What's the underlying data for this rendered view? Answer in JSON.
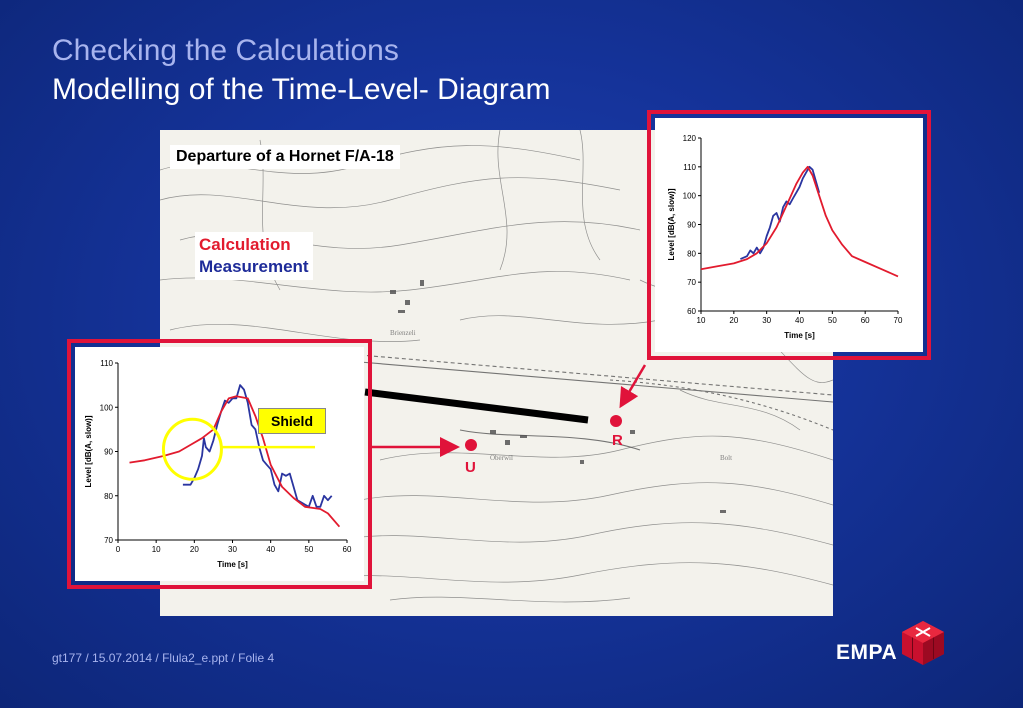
{
  "slide": {
    "title_line1": "Checking the Calculations",
    "title_line2": "Modelling of the Time-Level- Diagram",
    "footer": "gt177 / 15.07.2014 / Flula2_e.ppt / Folie 4",
    "logo": "EMPA"
  },
  "map": {
    "label": "Departure of a Hornet F/A-18",
    "legend": {
      "calculation": "Calculation",
      "measurement": "Measurement"
    },
    "shield_label": "Shield",
    "marker_u": "U",
    "marker_r": "R"
  },
  "colors": {
    "calculation": "#e21b2e",
    "measurement": "#2a35a0",
    "frame": "#e0133a",
    "background": "#15339a",
    "shield": "#ffff00"
  },
  "chart_data": [
    {
      "id": "point-R",
      "type": "line",
      "xlabel": "Time [s]",
      "ylabel": "Level [dB(A, slow)]",
      "xlim": [
        10,
        70
      ],
      "ylim": [
        60,
        120
      ],
      "xticks": [
        10,
        20,
        30,
        40,
        50,
        60,
        70
      ],
      "yticks": [
        60,
        70,
        80,
        90,
        100,
        110,
        120
      ],
      "grid": false,
      "series": [
        {
          "key": "calculation",
          "x": [
            10,
            15,
            20,
            24,
            27,
            30,
            33,
            35,
            37,
            39,
            41,
            42.5,
            44,
            46,
            48,
            50,
            53,
            56,
            60,
            65,
            70
          ],
          "y": [
            74.5,
            75.5,
            76.5,
            78,
            80,
            83.5,
            89,
            94,
            99,
            104,
            108,
            110,
            107,
            100,
            93,
            88,
            83,
            79,
            77,
            74.5,
            72
          ]
        },
        {
          "key": "measurement",
          "x": [
            22,
            24,
            25,
            26,
            27,
            28,
            29,
            30,
            31,
            32,
            33,
            34,
            35,
            36,
            37,
            38,
            39,
            40,
            41,
            42,
            43,
            44,
            45,
            46
          ],
          "y": [
            78,
            79,
            81,
            80,
            82,
            80,
            82,
            86,
            89,
            93,
            94,
            91,
            96,
            98,
            97,
            99,
            101,
            103,
            106,
            108,
            110,
            109,
            105,
            101
          ]
        }
      ]
    },
    {
      "id": "point-U",
      "type": "line",
      "xlabel": "Time [s]",
      "ylabel": "Level [dB(A, slow)]",
      "xlim": [
        0,
        60
      ],
      "ylim": [
        70,
        110
      ],
      "xticks": [
        0,
        10,
        20,
        30,
        40,
        50,
        60
      ],
      "yticks": [
        70,
        80,
        90,
        100,
        110
      ],
      "grid": false,
      "series": [
        {
          "key": "calculation",
          "x": [
            3,
            7,
            12,
            16,
            19,
            22,
            25,
            27,
            29,
            31,
            34,
            36,
            38,
            40,
            43,
            46,
            49,
            53,
            55,
            58
          ],
          "y": [
            87.5,
            88,
            89,
            90,
            91.5,
            93,
            95,
            99,
            102,
            102.5,
            102,
            98,
            93,
            87,
            82,
            79.5,
            77.5,
            77,
            76,
            73
          ]
        },
        {
          "key": "measurement",
          "x": [
            17,
            19,
            20,
            21,
            22,
            22.5,
            23,
            24,
            25,
            26,
            27,
            28,
            29,
            30,
            31,
            32,
            33,
            34,
            35,
            36,
            37,
            38,
            39,
            40,
            41,
            42,
            43,
            44,
            45,
            46,
            47,
            48,
            49,
            50,
            51,
            52,
            53,
            54,
            55,
            56
          ],
          "y": [
            82.5,
            82.5,
            84,
            86,
            89,
            93,
            91,
            90,
            92.5,
            96,
            99,
            101.5,
            101,
            102,
            102,
            105,
            104,
            101,
            96,
            95,
            91,
            88,
            87,
            86,
            82.5,
            81,
            85,
            84.5,
            85,
            82,
            79,
            78.5,
            78,
            77.5,
            80,
            77.5,
            77.5,
            80,
            79,
            80
          ]
        }
      ]
    }
  ]
}
